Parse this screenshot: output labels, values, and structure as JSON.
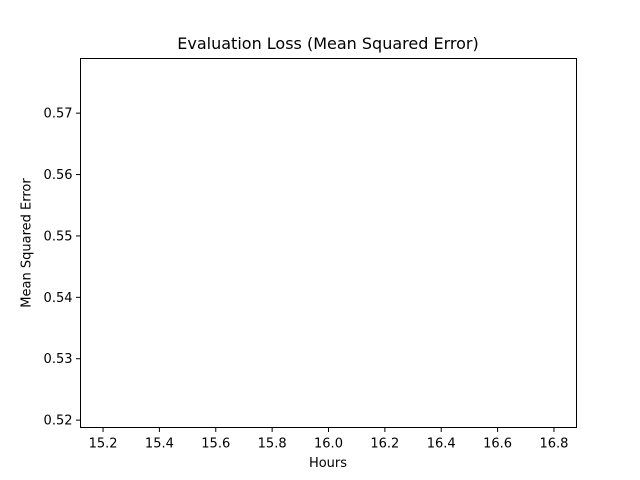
{
  "chart_data": {
    "type": "line",
    "title": "Evaluation Loss (Mean Squared Error)",
    "xlabel": "Hours",
    "ylabel": "Mean Squared Error",
    "xlim": [
      15.12,
      16.88
    ],
    "ylim": [
      0.5188,
      0.5789
    ],
    "xticks": [
      15.2,
      15.4,
      15.6,
      15.8,
      16.0,
      16.2,
      16.4,
      16.6,
      16.8
    ],
    "xtick_labels": [
      "15.2",
      "15.4",
      "15.6",
      "15.8",
      "16.0",
      "16.2",
      "16.4",
      "16.6",
      "16.8"
    ],
    "yticks": [
      0.52,
      0.53,
      0.54,
      0.55,
      0.56,
      0.57
    ],
    "ytick_labels": [
      "0.52",
      "0.53",
      "0.54",
      "0.55",
      "0.56",
      "0.57"
    ],
    "grid": false,
    "series": []
  },
  "colors": {
    "axes": "#000000",
    "background": "#ffffff"
  }
}
